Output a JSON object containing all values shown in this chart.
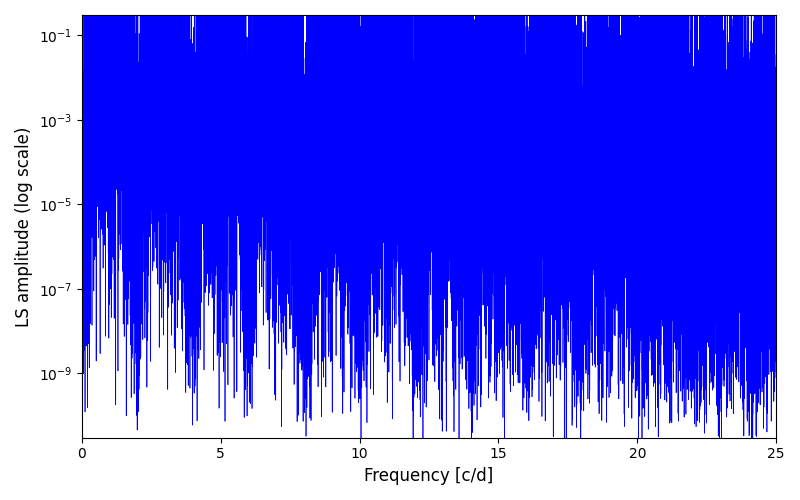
{
  "xlabel": "Frequency [c/d]",
  "ylabel": "LS amplitude (log scale)",
  "xlim": [
    0,
    25
  ],
  "ylim": [
    3e-11,
    0.3
  ],
  "line_color": "#0000ff",
  "linewidth": 0.5,
  "figsize": [
    8.0,
    5.0
  ],
  "dpi": 100,
  "freq_max": 25.0,
  "n_points": 25000,
  "seed": 12345,
  "base_amplitude": 0.002,
  "decay_rate": 0.22,
  "noise_floor_log_mean": -10.0,
  "noise_floor_log_std": 1.0
}
